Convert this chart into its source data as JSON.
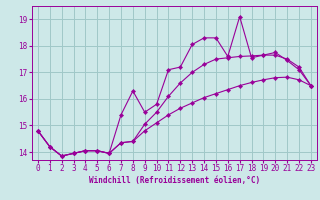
{
  "xlabel": "Windchill (Refroidissement éolien,°C)",
  "x": [
    0,
    1,
    2,
    3,
    4,
    5,
    6,
    7,
    8,
    9,
    10,
    11,
    12,
    13,
    14,
    15,
    16,
    17,
    18,
    19,
    20,
    21,
    22,
    23
  ],
  "line1": [
    14.8,
    14.2,
    13.85,
    13.95,
    14.05,
    14.05,
    13.95,
    15.4,
    16.3,
    15.5,
    15.8,
    17.1,
    17.2,
    18.05,
    18.3,
    18.3,
    17.6,
    19.1,
    17.55,
    17.65,
    17.75,
    17.45,
    17.1,
    16.5
  ],
  "line2": [
    14.8,
    14.2,
    13.85,
    13.95,
    14.05,
    14.05,
    13.95,
    14.35,
    14.4,
    15.05,
    15.5,
    16.1,
    16.6,
    17.0,
    17.3,
    17.5,
    17.55,
    17.6,
    17.62,
    17.65,
    17.65,
    17.5,
    17.2,
    16.5
  ],
  "line3": [
    14.8,
    14.2,
    13.85,
    13.95,
    14.05,
    14.05,
    13.95,
    14.35,
    14.4,
    14.8,
    15.1,
    15.4,
    15.65,
    15.85,
    16.05,
    16.2,
    16.35,
    16.5,
    16.62,
    16.72,
    16.8,
    16.82,
    16.72,
    16.5
  ],
  "line_color": "#990099",
  "bg_color": "#cde8e8",
  "grid_color": "#a0c8c8",
  "ylim": [
    13.7,
    19.5
  ],
  "xlim": [
    -0.5,
    23.5
  ],
  "yticks": [
    14,
    15,
    16,
    17,
    18,
    19
  ],
  "xticks": [
    0,
    1,
    2,
    3,
    4,
    5,
    6,
    7,
    8,
    9,
    10,
    11,
    12,
    13,
    14,
    15,
    16,
    17,
    18,
    19,
    20,
    21,
    22,
    23
  ]
}
